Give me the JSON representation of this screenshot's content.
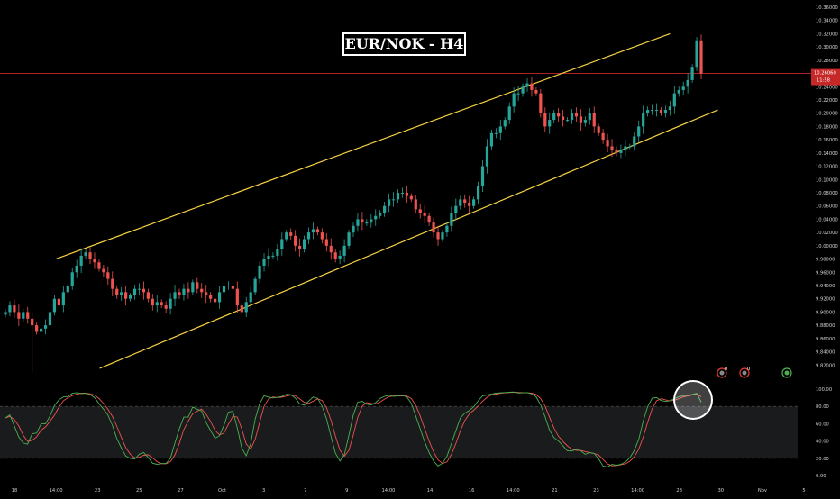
{
  "title": "EUR/NOK - H4",
  "colors": {
    "background": "#000000",
    "bull": "#26a69a",
    "bear": "#ef5350",
    "channel": "#f5d142",
    "price_line": "#c62828",
    "stoch_k": "#4caf50",
    "stoch_d": "#ef5350",
    "badge": "#e53935"
  },
  "price_axis": {
    "min": 9.8,
    "max": 10.36,
    "labels": [
      "10.36000",
      "10.34000",
      "10.32000",
      "10.30000",
      "10.28000",
      "10.26000",
      "10.24000",
      "10.22000",
      "10.20000",
      "10.18000",
      "10.16000",
      "10.14000",
      "10.12000",
      "10.10000",
      "10.08000",
      "10.06000",
      "10.04000",
      "10.02000",
      "10.00000",
      "9.98000",
      "9.96000",
      "9.94000",
      "9.92000",
      "9.90000",
      "9.88000",
      "9.86000",
      "9.84000",
      "9.82000"
    ]
  },
  "current_price": {
    "value": 10.26,
    "label": "10.26060",
    "countdown": "11:58"
  },
  "time_axis": {
    "labels": [
      "18",
      "14:00",
      "23",
      "25",
      "27",
      "Oct",
      "3",
      "7",
      "9",
      "14:00",
      "14",
      "16",
      "14:00",
      "21",
      "23",
      "14:00",
      "28",
      "30",
      "Nov",
      "5"
    ]
  },
  "oscillator_axis": {
    "min": 0,
    "max": 100,
    "labels": [
      "100.00",
      "80.00",
      "60.00",
      "40.00",
      "20.00",
      "0.00"
    ],
    "upper_band": 80,
    "lower_band": 20
  },
  "event_markers": [
    "0",
    "0",
    ""
  ],
  "chart_data": {
    "type": "candlestick",
    "symbol": "EUR/NOK",
    "timeframe": "H4",
    "title": "EUR/NOK - H4",
    "ylim": [
      9.8,
      10.36
    ],
    "last_price": 10.2606,
    "channel": {
      "upper": [
        {
          "t": 0.07,
          "price": 9.98
        },
        {
          "t": 0.84,
          "price": 10.32
        }
      ],
      "lower": [
        {
          "t": 0.125,
          "price": 9.815
        },
        {
          "t": 0.9,
          "price": 10.205
        }
      ]
    },
    "closes": [
      9.9,
      9.91,
      9.9,
      9.89,
      9.9,
      9.89,
      9.88,
      9.87,
      9.875,
      9.88,
      9.9,
      9.92,
      9.91,
      9.93,
      9.94,
      9.96,
      9.97,
      9.985,
      9.99,
      9.98,
      9.975,
      9.965,
      9.96,
      9.95,
      9.935,
      9.925,
      9.93,
      9.92,
      9.925,
      9.935,
      9.935,
      9.93,
      9.92,
      9.91,
      9.915,
      9.91,
      9.905,
      9.92,
      9.93,
      9.925,
      9.935,
      9.93,
      9.945,
      9.935,
      9.93,
      9.925,
      9.92,
      9.915,
      9.93,
      9.94,
      9.94,
      9.935,
      9.91,
      9.9,
      9.915,
      9.93,
      9.95,
      9.97,
      9.98,
      9.985,
      9.985,
      9.995,
      10.01,
      10.02,
      10.015,
      10.0,
      9.995,
      10.01,
      10.02,
      10.025,
      10.02,
      10.01,
      10.0,
      9.99,
      9.98,
      9.985,
      10.0,
      10.02,
      10.03,
      10.04,
      10.035,
      10.035,
      10.04,
      10.045,
      10.05,
      10.06,
      10.07,
      10.07,
      10.08,
      10.08,
      10.075,
      10.07,
      10.055,
      10.05,
      10.045,
      10.035,
      10.02,
      10.01,
      10.02,
      10.03,
      10.05,
      10.06,
      10.07,
      10.065,
      10.06,
      10.07,
      10.09,
      10.12,
      10.15,
      10.17,
      10.17,
      10.18,
      10.19,
      10.21,
      10.23,
      10.23,
      10.24,
      10.245,
      10.235,
      10.23,
      10.2,
      10.18,
      10.19,
      10.2,
      10.195,
      10.19,
      10.19,
      10.2,
      10.195,
      10.185,
      10.19,
      10.2,
      10.18,
      10.17,
      10.16,
      10.15,
      10.145,
      10.14,
      10.145,
      10.15,
      10.15,
      10.165,
      10.18,
      10.2,
      10.205,
      10.205,
      10.205,
      10.2,
      10.205,
      10.21,
      10.23,
      10.235,
      10.24,
      10.25,
      10.27,
      10.31,
      10.26
    ],
    "stochastic": {
      "k_period": 14,
      "upper_band": 80,
      "lower_band": 20,
      "latest_k": 78,
      "latest_d": 84
    }
  }
}
